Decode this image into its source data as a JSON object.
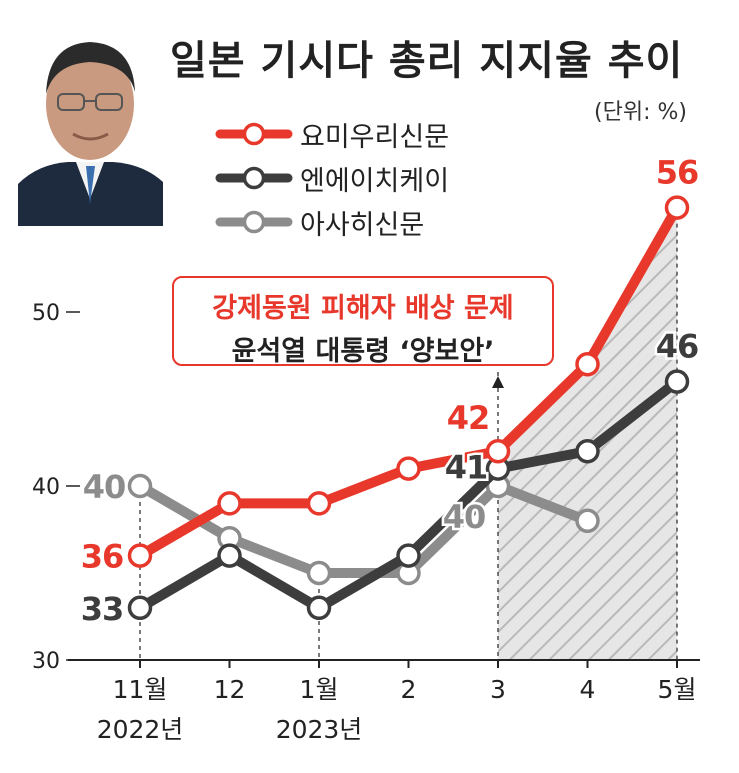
{
  "title": "일본 기시다 총리 지지율 추이",
  "unit": "(단위: %)",
  "annotation": {
    "line1": "강제동원 피해자 배상 문제",
    "line2": "윤석열 대통령 ‘양보안’"
  },
  "colors": {
    "yomiuri": "#e8382c",
    "nhk": "#3d3d3d",
    "asahi": "#8c8c8c"
  },
  "chart_data": {
    "type": "line",
    "categories": [
      "11월",
      "12",
      "1월",
      "2",
      "3",
      "4",
      "5월"
    ],
    "year_labels": [
      "2022년",
      "",
      "2023년",
      "",
      "",
      "",
      ""
    ],
    "ylim": [
      30,
      58
    ],
    "yticks": [
      "30",
      "40",
      "50"
    ],
    "series": [
      {
        "name": "요미우리신문",
        "key": "yomiuri",
        "values": [
          36,
          39,
          39,
          41,
          42,
          47,
          56
        ]
      },
      {
        "name": "엔에이치케이",
        "key": "nhk",
        "values": [
          33,
          36,
          33,
          36,
          41,
          42,
          46
        ]
      },
      {
        "name": "아사히신문",
        "key": "asahi",
        "values": [
          40,
          37,
          35,
          35,
          40,
          38,
          null
        ]
      }
    ],
    "data_labels": [
      {
        "key": "yomiuri",
        "index": 0,
        "text": "36"
      },
      {
        "key": "yomiuri",
        "index": 4,
        "text": "42"
      },
      {
        "key": "yomiuri",
        "index": 6,
        "text": "56"
      },
      {
        "key": "nhk",
        "index": 0,
        "text": "33"
      },
      {
        "key": "nhk",
        "index": 4,
        "text": "41"
      },
      {
        "key": "nhk",
        "index": 6,
        "text": "46"
      },
      {
        "key": "asahi",
        "index": 0,
        "text": "40"
      },
      {
        "key": "asahi",
        "index": 4,
        "text": "40"
      }
    ]
  }
}
